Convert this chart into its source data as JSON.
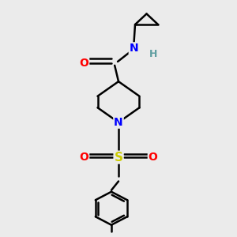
{
  "background_color": "#ebebeb",
  "atom_colors": {
    "C": "#000000",
    "N": "#0000ff",
    "O": "#ff0000",
    "S": "#cccc00",
    "H": "#5f9ea0"
  },
  "bond_color": "#000000",
  "bond_width": 1.8,
  "figsize": [
    3.0,
    3.0
  ],
  "dpi": 100
}
